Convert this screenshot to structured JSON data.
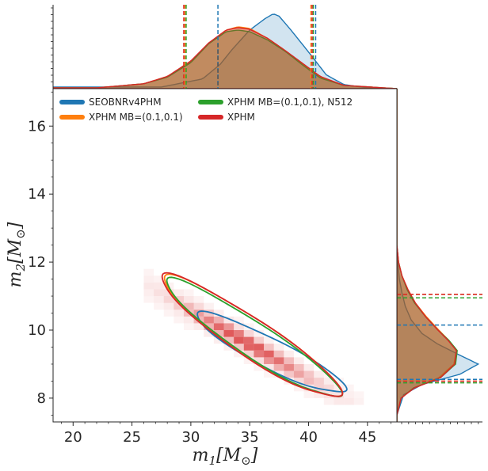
{
  "chart_data": {
    "type": "corner-plot",
    "xlabel": "m_1[M_⊙]",
    "ylabel": "m_2[M_⊙]",
    "xlabel_main": "m",
    "xlabel_sub": "1",
    "xlabel_unit": "[M",
    "xlabel_unit_sub": "⊙",
    "xlabel_close": "]",
    "ylabel_main": "m",
    "ylabel_sub": "2",
    "ylabel_unit": "[M",
    "ylabel_unit_sub": "⊙",
    "ylabel_close": "]",
    "xlim": [
      18.3,
      47.5
    ],
    "ylim": [
      7.3,
      17.1
    ],
    "xticks": [
      20,
      25,
      30,
      35,
      40,
      45
    ],
    "yticks": [
      8,
      10,
      12,
      14,
      16
    ],
    "series": [
      {
        "name": "SEOBNRv4PHM",
        "color": "#1f77b4",
        "m1_90": [
          32.3,
          40.6
        ],
        "m2_90": [
          8.55,
          10.15
        ],
        "m1_density_x": [
          27.5,
          31,
          32.5,
          33.5,
          35,
          36.3,
          37,
          37.5,
          38.5,
          40,
          41.5,
          43,
          45,
          47.5
        ],
        "m1_density_y": [
          0.02,
          0.12,
          0.3,
          0.48,
          0.72,
          0.86,
          0.92,
          0.89,
          0.72,
          0.45,
          0.17,
          0.05,
          0.01,
          0.0
        ],
        "m2_density_y": [
          7.5,
          8.1,
          8.4,
          8.7,
          9.0,
          9.3,
          9.6,
          9.9,
          10.3,
          10.7,
          11.1,
          11.5,
          12.0,
          12.5
        ],
        "m2_density_v": [
          0.0,
          0.08,
          0.3,
          0.75,
          0.97,
          0.72,
          0.48,
          0.3,
          0.17,
          0.1,
          0.06,
          0.03,
          0.01,
          0.0
        ]
      },
      {
        "name": "XPHM MB=(0.1,0.1)",
        "color": "#ff7f0e",
        "m1_90": [
          29.5,
          40.2
        ],
        "m2_90": [
          8.5,
          11.05
        ],
        "m1_density_x": [
          22,
          26,
          28,
          30,
          31.5,
          33,
          34,
          35,
          36.5,
          38,
          39.5,
          41,
          43,
          47.5
        ],
        "m1_density_y": [
          0.01,
          0.06,
          0.15,
          0.33,
          0.55,
          0.72,
          0.76,
          0.74,
          0.62,
          0.47,
          0.3,
          0.14,
          0.04,
          0.0
        ],
        "m2_density_y": [
          7.5,
          8.0,
          8.3,
          8.6,
          9.0,
          9.4,
          9.7,
          10.0,
          10.4,
          10.8,
          11.2,
          11.6,
          12.0,
          12.5
        ],
        "m2_density_v": [
          0.0,
          0.05,
          0.2,
          0.5,
          0.68,
          0.71,
          0.62,
          0.5,
          0.35,
          0.22,
          0.13,
          0.06,
          0.02,
          0.0
        ]
      },
      {
        "name": "XPHM MB=(0.1,0.1), N512",
        "color": "#2ca02c",
        "m1_90": [
          29.6,
          40.4
        ],
        "m2_90": [
          8.45,
          10.95
        ],
        "m1_density_x": [
          22,
          26,
          28,
          30,
          31.5,
          33,
          34,
          35,
          36.5,
          38,
          39.5,
          41,
          43,
          47.5
        ],
        "m1_density_y": [
          0.01,
          0.06,
          0.14,
          0.32,
          0.55,
          0.7,
          0.72,
          0.7,
          0.6,
          0.46,
          0.29,
          0.13,
          0.04,
          0.0
        ],
        "m2_density_y": [
          7.5,
          8.0,
          8.3,
          8.6,
          9.0,
          9.4,
          9.7,
          10.0,
          10.4,
          10.8,
          11.2,
          11.6,
          12.0,
          12.5
        ],
        "m2_density_v": [
          0.0,
          0.05,
          0.2,
          0.52,
          0.7,
          0.72,
          0.62,
          0.49,
          0.34,
          0.21,
          0.12,
          0.06,
          0.02,
          0.0
        ]
      },
      {
        "name": "XPHM",
        "color": "#d62728",
        "m1_90": [
          29.4,
          40.3
        ],
        "m2_90": [
          8.5,
          11.05
        ],
        "m1_density_x": [
          22,
          26,
          28,
          30,
          31.5,
          33,
          34,
          35,
          36.5,
          38,
          39.5,
          41,
          43,
          47.5
        ],
        "m1_density_y": [
          0.01,
          0.06,
          0.15,
          0.34,
          0.56,
          0.72,
          0.75,
          0.73,
          0.62,
          0.47,
          0.31,
          0.15,
          0.04,
          0.0
        ],
        "m2_density_y": [
          7.5,
          8.0,
          8.3,
          8.6,
          9.0,
          9.4,
          9.7,
          10.0,
          10.4,
          10.8,
          11.2,
          11.6,
          12.0,
          12.5
        ],
        "m2_density_v": [
          0.0,
          0.05,
          0.21,
          0.52,
          0.69,
          0.71,
          0.61,
          0.49,
          0.34,
          0.22,
          0.13,
          0.06,
          0.02,
          0.0
        ]
      }
    ],
    "contour_ellipses": [
      {
        "series": "SEOBNRv4PHM",
        "center": [
          36.8,
          9.32
        ],
        "a_m1": 6.3,
        "b_m2": 0.22,
        "tilt_m2_per_m1": -0.17
      },
      {
        "series": "XPHM MB=(0.1,0.1)",
        "center": [
          35.2,
          9.78
        ],
        "a_m1": 7.5,
        "b_m2": 0.3,
        "tilt_m2_per_m1": -0.22
      },
      {
        "series": "XPHM MB=(0.1,0.1), N512",
        "center": [
          35.3,
          9.74
        ],
        "a_m1": 7.4,
        "b_m2": 0.27,
        "tilt_m2_per_m1": -0.22
      },
      {
        "series": "XPHM",
        "center": [
          35.1,
          9.8
        ],
        "a_m1": 7.6,
        "b_m2": 0.3,
        "tilt_m2_per_m1": -0.22
      }
    ],
    "hist2d": {
      "color": "#d62728",
      "center": [
        34.8,
        9.62
      ],
      "bin_m1": 0.85,
      "bin_m2": 0.2
    },
    "legend": {
      "placement": "top-left",
      "columns": 2,
      "labels": [
        "SEOBNRv4PHM",
        "XPHM MB=(0.1,0.1)",
        "XPHM MB=(0.1,0.1), N512",
        "XPHM"
      ],
      "colors": [
        "#1f77b4",
        "#ff7f0e",
        "#2ca02c",
        "#d62728"
      ]
    }
  }
}
